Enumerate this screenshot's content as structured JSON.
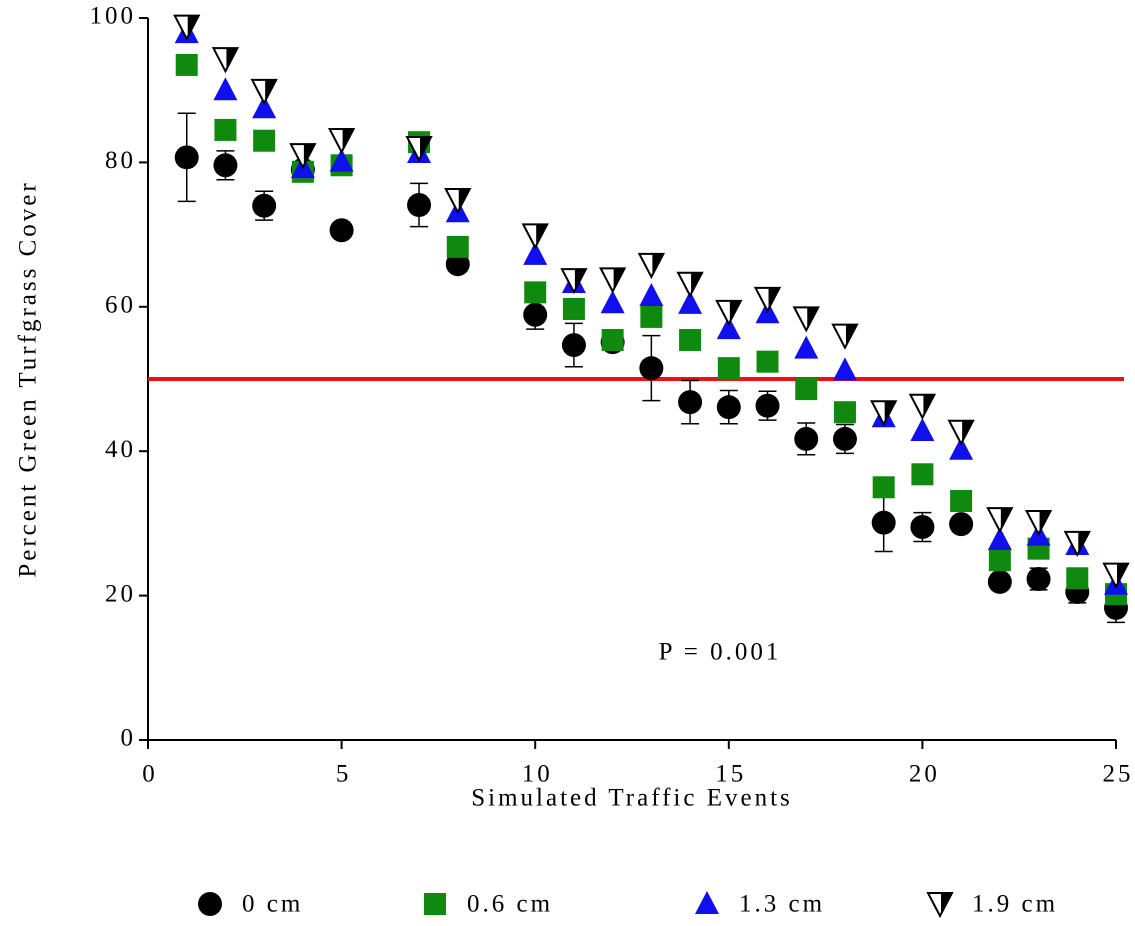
{
  "chart_data": {
    "type": "scatter",
    "x_label": "Simulated Traffic Events",
    "y_label": "Percent Green Turfgrass Cover",
    "annotation": "P = 0.001",
    "hline": {
      "value": 50,
      "color": "#ee1111"
    },
    "xlim": [
      0,
      25
    ],
    "xticks": [
      0,
      5,
      10,
      15,
      20,
      25
    ],
    "ylim": [
      0,
      100
    ],
    "yticks": [
      0,
      20,
      40,
      60,
      80,
      100
    ],
    "x": [
      1,
      2,
      3,
      4,
      5,
      7,
      8,
      10,
      11,
      12,
      13,
      14,
      15,
      16,
      17,
      18,
      19,
      20,
      21,
      22,
      23,
      24,
      25
    ],
    "series": [
      {
        "name": "0 cm",
        "color": "#000000",
        "marker": "circle",
        "values": [
          80.7,
          79.6,
          74.0,
          79.0,
          70.6,
          74.1,
          65.9,
          58.9,
          54.7,
          55.1,
          51.5,
          46.8,
          46.1,
          46.3,
          41.7,
          41.7,
          30.1,
          29.5,
          29.9,
          21.9,
          22.3,
          20.5,
          18.3
        ],
        "errors": [
          6.1,
          2.0,
          2.0,
          0,
          0,
          3.0,
          0,
          2.0,
          3.0,
          0,
          4.5,
          3.0,
          2.3,
          2.0,
          2.2,
          2.0,
          4.0,
          2.0,
          0,
          0,
          1.5,
          1.5,
          2.0
        ]
      },
      {
        "name": "0.6 cm",
        "color": "#0f8a0f",
        "marker": "square",
        "values": [
          93.5,
          84.5,
          83.0,
          78.7,
          79.6,
          82.8,
          68.3,
          62.0,
          59.7,
          55.4,
          58.6,
          55.4,
          51.5,
          52.4,
          48.6,
          45.4,
          35.0,
          36.8,
          33.1,
          24.9,
          26.5,
          22.4,
          20.2
        ]
      },
      {
        "name": "1.3 cm",
        "color": "#1010ee",
        "marker": "triangle-up",
        "values": [
          97.9,
          90.0,
          87.5,
          79.2,
          80.1,
          81.3,
          73.1,
          67.2,
          63.3,
          60.5,
          61.5,
          60.4,
          56.9,
          59.1,
          54.2,
          51.2,
          44.7,
          42.8,
          40.2,
          27.7,
          28.3,
          27.0,
          21.5
        ]
      },
      {
        "name": "1.9 cm",
        "color": "#000000",
        "marker": "triangle-down-half",
        "values": [
          98.8,
          94.3,
          89.9,
          81.0,
          83.1,
          82.0,
          74.8,
          69.9,
          63.7,
          63.8,
          65.8,
          63.2,
          59.3,
          61.1,
          58.4,
          56.0,
          45.4,
          46.3,
          42.7,
          30.6,
          30.2,
          27.3,
          22.9
        ]
      }
    ]
  }
}
